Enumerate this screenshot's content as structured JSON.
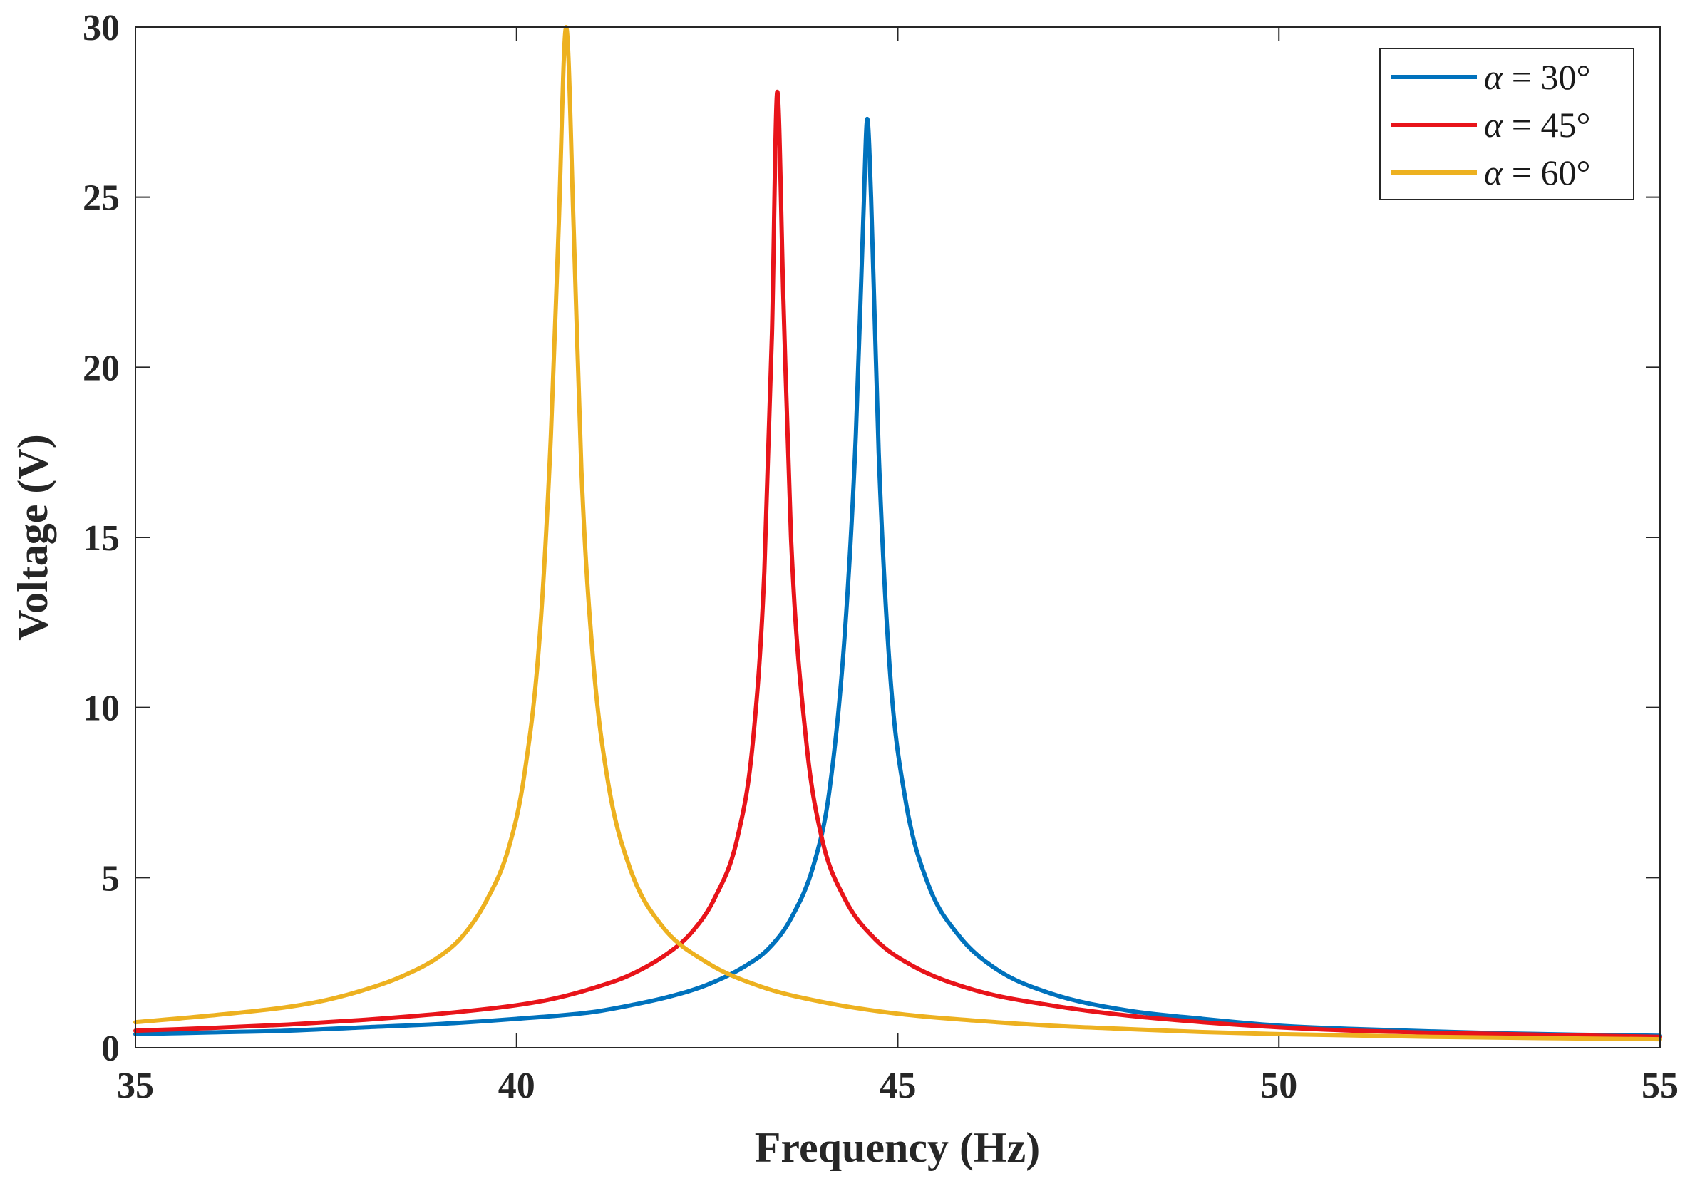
{
  "chart_data": {
    "type": "line",
    "title": "",
    "xlabel": "Frequency (Hz)",
    "ylabel": "Voltage (V)",
    "xlim": [
      35,
      55
    ],
    "ylim": [
      0,
      30
    ],
    "xticks": [
      35,
      40,
      45,
      50,
      55
    ],
    "yticks": [
      0,
      5,
      10,
      15,
      20,
      25,
      30
    ],
    "xtick_labels": [
      "35",
      "40",
      "45",
      "50",
      "55"
    ],
    "ytick_labels": [
      "0",
      "5",
      "10",
      "15",
      "20",
      "25",
      "30"
    ],
    "grid": false,
    "legend_position": "top-right",
    "series": [
      {
        "name": "α = 30°",
        "legend_symbol": "α",
        "legend_rest": " = 30°",
        "color": "#0072BD",
        "points": [
          [
            35,
            0.4
          ],
          [
            36,
            0.45
          ],
          [
            37,
            0.5
          ],
          [
            38,
            0.6
          ],
          [
            39,
            0.7
          ],
          [
            40,
            0.85
          ],
          [
            41,
            1.05
          ],
          [
            41.5,
            1.25
          ],
          [
            42,
            1.5
          ],
          [
            42.5,
            1.85
          ],
          [
            43,
            2.4
          ],
          [
            43.3,
            2.9
          ],
          [
            43.6,
            3.8
          ],
          [
            43.9,
            5.4
          ],
          [
            44.1,
            7.5
          ],
          [
            44.3,
            12.0
          ],
          [
            44.45,
            18.0
          ],
          [
            44.55,
            24.5
          ],
          [
            44.6,
            27.3
          ],
          [
            44.65,
            25.0
          ],
          [
            44.75,
            17.5
          ],
          [
            44.9,
            11.0
          ],
          [
            45.1,
            7.3
          ],
          [
            45.4,
            4.8
          ],
          [
            45.8,
            3.3
          ],
          [
            46.3,
            2.3
          ],
          [
            47,
            1.6
          ],
          [
            48,
            1.1
          ],
          [
            49,
            0.85
          ],
          [
            50,
            0.65
          ],
          [
            51,
            0.55
          ],
          [
            52,
            0.48
          ],
          [
            53,
            0.42
          ],
          [
            54,
            0.38
          ],
          [
            55,
            0.35
          ]
        ]
      },
      {
        "name": "α = 45°",
        "legend_symbol": "α",
        "legend_rest": " = 45°",
        "color": "#E8141A",
        "points": [
          [
            35,
            0.5
          ],
          [
            36,
            0.58
          ],
          [
            37,
            0.68
          ],
          [
            38,
            0.82
          ],
          [
            39,
            1.0
          ],
          [
            40,
            1.25
          ],
          [
            40.5,
            1.45
          ],
          [
            41,
            1.75
          ],
          [
            41.5,
            2.15
          ],
          [
            42,
            2.8
          ],
          [
            42.3,
            3.4
          ],
          [
            42.6,
            4.4
          ],
          [
            42.9,
            6.2
          ],
          [
            43.1,
            9.0
          ],
          [
            43.25,
            14.0
          ],
          [
            43.35,
            21.0
          ],
          [
            43.42,
            28.1
          ],
          [
            43.5,
            22.0
          ],
          [
            43.6,
            15.0
          ],
          [
            43.8,
            9.0
          ],
          [
            44,
            6.2
          ],
          [
            44.3,
            4.4
          ],
          [
            44.7,
            3.2
          ],
          [
            45.2,
            2.4
          ],
          [
            46,
            1.7
          ],
          [
            47,
            1.25
          ],
          [
            48,
            0.95
          ],
          [
            49,
            0.75
          ],
          [
            50,
            0.6
          ],
          [
            51,
            0.5
          ],
          [
            52,
            0.44
          ],
          [
            53,
            0.4
          ],
          [
            54,
            0.36
          ],
          [
            55,
            0.32
          ]
        ]
      },
      {
        "name": "α = 60°",
        "legend_symbol": "α",
        "legend_rest": " = 60°",
        "color": "#EDB120",
        "points": [
          [
            35,
            0.75
          ],
          [
            36,
            0.95
          ],
          [
            37,
            1.2
          ],
          [
            37.5,
            1.4
          ],
          [
            38,
            1.7
          ],
          [
            38.5,
            2.1
          ],
          [
            39,
            2.7
          ],
          [
            39.3,
            3.3
          ],
          [
            39.6,
            4.3
          ],
          [
            39.9,
            5.9
          ],
          [
            40.1,
            8.0
          ],
          [
            40.3,
            12.0
          ],
          [
            40.45,
            18.0
          ],
          [
            40.55,
            24.0
          ],
          [
            40.65,
            30.0
          ],
          [
            40.75,
            24.0
          ],
          [
            40.85,
            17.0
          ],
          [
            41.0,
            11.5
          ],
          [
            41.2,
            7.8
          ],
          [
            41.5,
            5.2
          ],
          [
            41.9,
            3.6
          ],
          [
            42.5,
            2.5
          ],
          [
            43.2,
            1.8
          ],
          [
            44,
            1.35
          ],
          [
            45,
            1.0
          ],
          [
            46,
            0.8
          ],
          [
            47,
            0.65
          ],
          [
            48,
            0.55
          ],
          [
            49,
            0.46
          ],
          [
            50,
            0.4
          ],
          [
            52,
            0.32
          ],
          [
            54,
            0.27
          ],
          [
            55,
            0.25
          ]
        ]
      }
    ]
  }
}
